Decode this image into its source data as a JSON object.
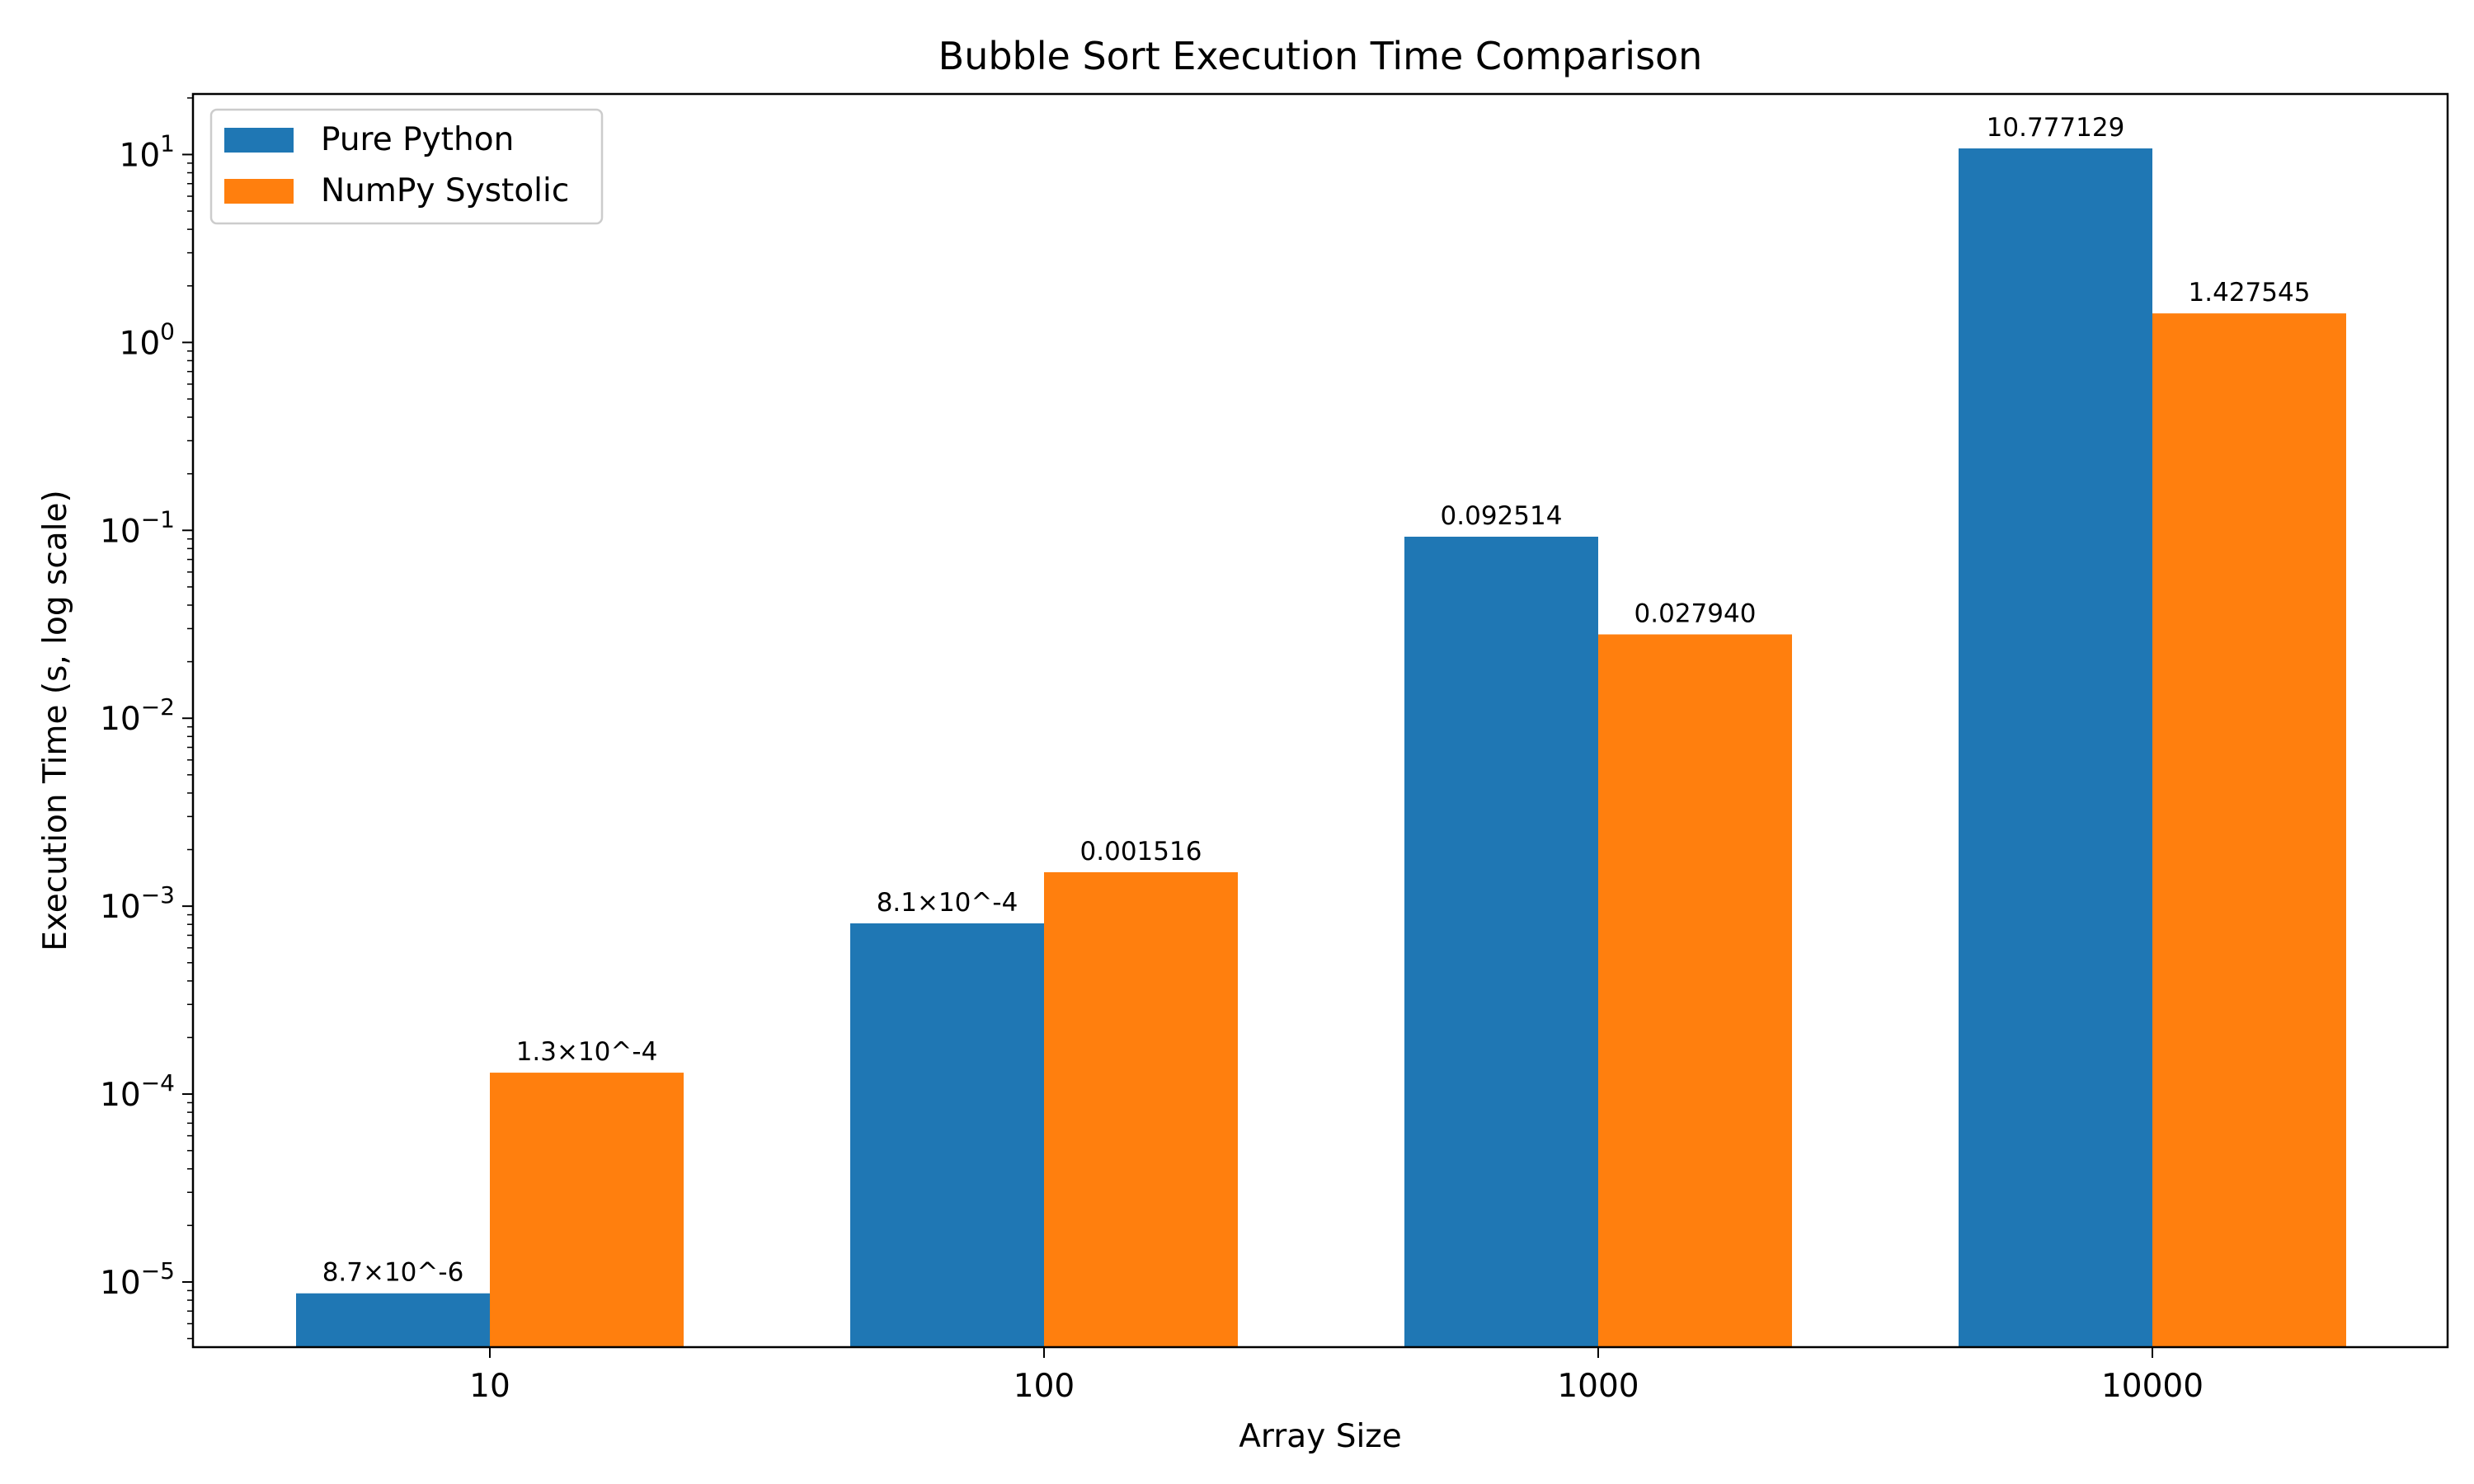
{
  "chart_data": {
    "type": "bar",
    "title": "Bubble Sort Execution Time Comparison",
    "xlabel": "Array Size",
    "ylabel": "Execution Time (s, log scale)",
    "yscale": "log",
    "ylim": [
      4.5e-06,
      21
    ],
    "categories": [
      "10",
      "100",
      "1000",
      "10000"
    ],
    "series": [
      {
        "name": "Pure Python",
        "color": "#1f77b4",
        "values": [
          8.7e-06,
          0.00081,
          0.092514,
          10.777129
        ],
        "labels": [
          "8.7×10^-6",
          "8.1×10^-4",
          "0.092514",
          "10.777129"
        ]
      },
      {
        "name": "NumPy Systolic",
        "color": "#ff7f0e",
        "values": [
          0.00013,
          0.001516,
          0.02794,
          1.427545
        ],
        "labels": [
          "1.3×10^-4",
          "0.001516",
          "0.027940",
          "1.427545"
        ]
      }
    ],
    "yticks": [
      {
        "value": 1e-05,
        "base": "10",
        "exp": "−5"
      },
      {
        "value": 0.0001,
        "base": "10",
        "exp": "−4"
      },
      {
        "value": 0.001,
        "base": "10",
        "exp": "−3"
      },
      {
        "value": 0.01,
        "base": "10",
        "exp": "−2"
      },
      {
        "value": 0.1,
        "base": "10",
        "exp": "−1"
      },
      {
        "value": 1,
        "base": "10",
        "exp": "0"
      },
      {
        "value": 10,
        "base": "10",
        "exp": "1"
      }
    ],
    "legend_position": "top-left",
    "grid": false
  }
}
